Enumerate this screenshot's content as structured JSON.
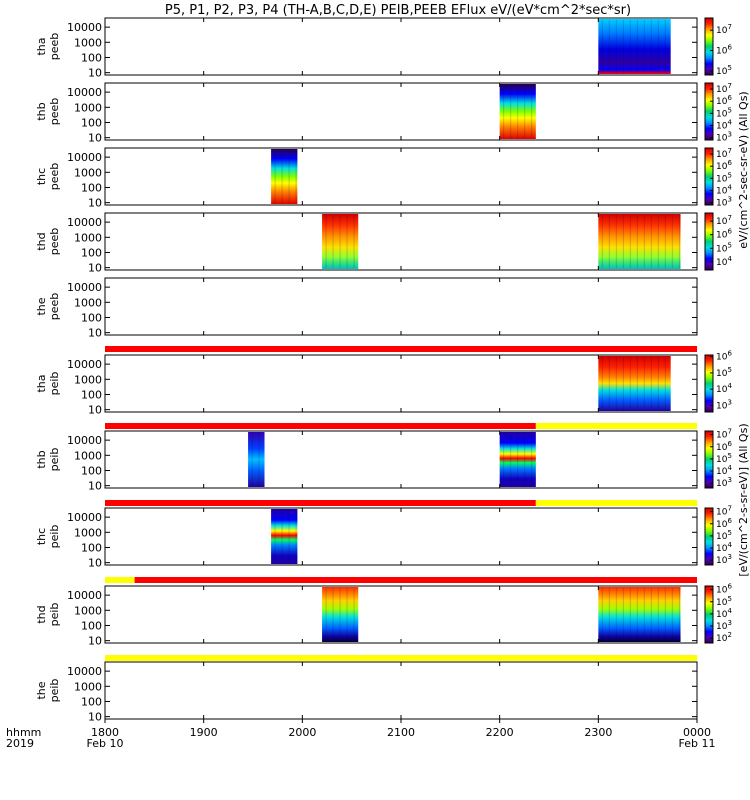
{
  "title": "P5, P1, P2, P3, P4 (TH-A,B,C,D,E) PEIB,PEEB EFlux eV/(eV*cm^2*sec*sr)",
  "chart_data": {
    "type": "heatmap",
    "x_axis": {
      "range_minutes": [
        1080,
        1440
      ],
      "ticks": [
        {
          "label": "1800",
          "minute": 1080
        },
        {
          "label": "1900",
          "minute": 1140
        },
        {
          "label": "2000",
          "minute": 1200
        },
        {
          "label": "2100",
          "minute": 1260
        },
        {
          "label": "2200",
          "minute": 1320
        },
        {
          "label": "2300",
          "minute": 1380
        },
        {
          "label": "0000",
          "minute": 1440
        }
      ],
      "left_label_1": "hhmm",
      "left_label_2": "2019",
      "date_start": "Feb 10",
      "date_end": "Feb 11"
    },
    "y_axis": {
      "scale": "log",
      "range": [
        7,
        40000
      ],
      "ticks": [
        "10",
        "100",
        "1000",
        "10000"
      ],
      "tick_values": [
        10,
        100,
        1000,
        10000
      ]
    },
    "colorbar_label_electron": "eV/(cm^2-sec-sr-eV) (All Qs)",
    "colorbar_label_ion": "[eV/(cm^2-s-sr-eV)] (All Qs)",
    "panels": [
      {
        "label1": "tha",
        "label2": "peeb",
        "blocks": [
          [
            1380,
            1424
          ]
        ],
        "colorbar": {
          "ticks": [
            "10^7",
            "10^6",
            "10^5"
          ],
          "exps": [
            7,
            6,
            5
          ],
          "emin": 4.8,
          "emax": 7.6
        }
      },
      {
        "label1": "thb",
        "label2": "peeb",
        "blocks": [
          [
            1320,
            1342
          ]
        ],
        "colorbar": {
          "ticks": [
            "10^7",
            "10^6",
            "10^5",
            "10^4",
            "10^3"
          ],
          "exps": [
            7,
            6,
            5,
            4,
            3
          ],
          "emin": 2.8,
          "emax": 7.5
        }
      },
      {
        "label1": "thc",
        "label2": "peeb",
        "blocks": [
          [
            1181,
            1197
          ]
        ],
        "colorbar": {
          "ticks": [
            "10^7",
            "10^6",
            "10^5",
            "10^4",
            "10^3"
          ],
          "exps": [
            7,
            6,
            5,
            4,
            3
          ],
          "emin": 2.8,
          "emax": 7.5
        }
      },
      {
        "label1": "thd",
        "label2": "peeb",
        "blocks": [
          [
            1212,
            1234
          ],
          [
            1380,
            1430
          ]
        ],
        "colorbar": {
          "ticks": [
            "10^7",
            "10^6",
            "10^5",
            "10^4"
          ],
          "exps": [
            7,
            6,
            5,
            4
          ],
          "emin": 3.4,
          "emax": 7.6
        }
      },
      {
        "label1": "the",
        "label2": "peeb",
        "blocks": [],
        "colorbar": null
      },
      {
        "label1": "tha",
        "label2": "peib",
        "blocks": [
          [
            1380,
            1424
          ]
        ],
        "colorbar": {
          "ticks": [
            "10^6",
            "10^5",
            "10^4",
            "10^3"
          ],
          "exps": [
            6,
            5,
            4,
            3
          ],
          "emin": 2.6,
          "emax": 6.1
        }
      },
      {
        "label1": "thb",
        "label2": "peib",
        "blocks": [
          [
            1167,
            1177
          ],
          [
            1320,
            1342
          ]
        ],
        "colorbar": {
          "ticks": [
            "10^7",
            "10^6",
            "10^5",
            "10^4",
            "10^3"
          ],
          "exps": [
            7,
            6,
            5,
            4,
            3
          ],
          "emin": 2.6,
          "emax": 7.3
        }
      },
      {
        "label1": "thc",
        "label2": "peib",
        "blocks": [
          [
            1181,
            1197
          ]
        ],
        "colorbar": {
          "ticks": [
            "10^7",
            "10^6",
            "10^5",
            "10^4",
            "10^3"
          ],
          "exps": [
            7,
            6,
            5,
            4,
            3
          ],
          "emin": 2.6,
          "emax": 7.3
        }
      },
      {
        "label1": "thd",
        "label2": "peib",
        "blocks": [
          [
            1212,
            1234
          ],
          [
            1380,
            1430
          ]
        ],
        "colorbar": {
          "ticks": [
            "10^6",
            "10^5",
            "10^4",
            "10^3",
            "10^2"
          ],
          "exps": [
            6,
            5,
            4,
            3,
            2
          ],
          "emin": 1.6,
          "emax": 6.3
        }
      },
      {
        "label1": "the",
        "label2": "peib",
        "blocks": [],
        "colorbar": null
      }
    ],
    "status_bars": [
      {
        "segments": [
          {
            "from": 1080,
            "to": 1440,
            "color": "#ff0000"
          }
        ]
      },
      {
        "segments": [
          {
            "from": 1080,
            "to": 1342,
            "color": "#ff0000"
          },
          {
            "from": 1342,
            "to": 1440,
            "color": "#ffff00"
          }
        ]
      },
      {
        "segments": [
          {
            "from": 1080,
            "to": 1342,
            "color": "#ff0000"
          },
          {
            "from": 1342,
            "to": 1440,
            "color": "#ffff00"
          }
        ]
      },
      {
        "segments": [
          {
            "from": 1080,
            "to": 1098,
            "color": "#ffff00"
          },
          {
            "from": 1098,
            "to": 1440,
            "color": "#ff0000"
          }
        ]
      },
      {
        "segments": [
          {
            "from": 1080,
            "to": 1440,
            "color": "#ffff00"
          }
        ]
      }
    ]
  }
}
